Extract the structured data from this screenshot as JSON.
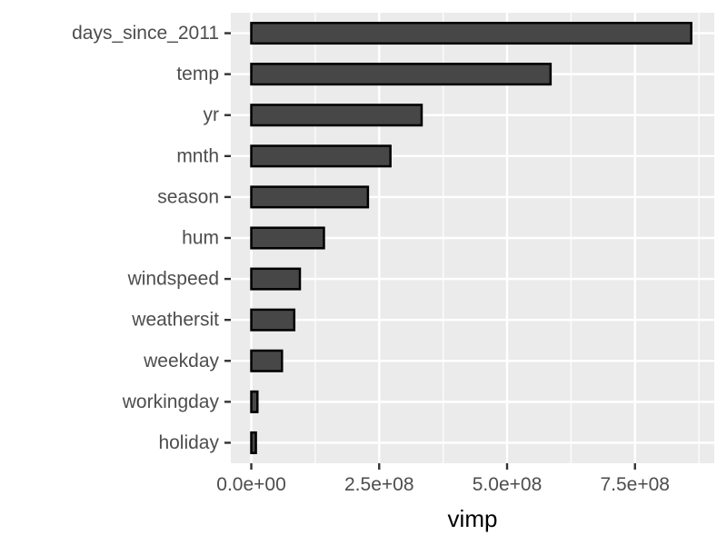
{
  "chart_data": {
    "type": "bar",
    "orientation": "horizontal",
    "categories": [
      "days_since_2011",
      "temp",
      "yr",
      "mnth",
      "season",
      "hum",
      "windspeed",
      "weathersit",
      "weekday",
      "workingday",
      "holiday"
    ],
    "values": [
      860000000,
      585000000,
      333000000,
      272000000,
      228000000,
      142000000,
      95000000,
      84000000,
      60000000,
      12000000,
      9000000
    ],
    "title": "",
    "xlabel": "vimp",
    "ylabel": "",
    "xlim": [
      -40000000,
      905000000
    ],
    "xticks": [
      0,
      250000000,
      500000000,
      750000000
    ],
    "xtick_labels": [
      "0.0e+00",
      "2.5e+08",
      "5.0e+08",
      "7.5e+08"
    ],
    "grid": true,
    "legend": "none",
    "colors": {
      "bar_fill": "#474747",
      "bar_stroke": "#000000",
      "panel_bg": "#ebebeb",
      "grid": "#ffffff",
      "tick": "#333333"
    }
  }
}
